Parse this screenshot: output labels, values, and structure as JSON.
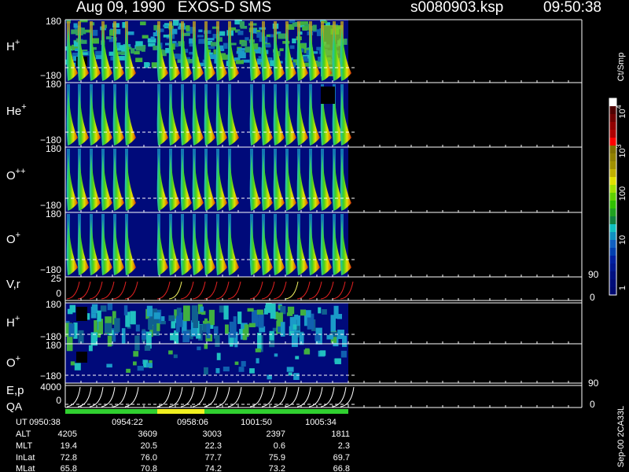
{
  "header": {
    "title": "Aug 09, 1990   EXOS-D SMS",
    "file": "s0080903.ksp",
    "time": "09:50:38"
  },
  "panels": [
    {
      "label": "H",
      "sup": "+",
      "ticks": [
        "180",
        "−180"
      ]
    },
    {
      "label": "He",
      "sup": "+",
      "ticks": [
        "180",
        "−180"
      ]
    },
    {
      "label": "O",
      "sup": "++",
      "ticks": [
        "180",
        "−180"
      ]
    },
    {
      "label": "O",
      "sup": "+",
      "ticks": [
        "180",
        "−180"
      ]
    },
    {
      "label": "V,r",
      "ticks": [
        "25",
        "0"
      ],
      "right_ticks": [
        "90",
        "0"
      ]
    },
    {
      "label": "H",
      "sup": "+",
      "ticks": [
        "180",
        "−180"
      ]
    },
    {
      "label": "O",
      "sup": "+",
      "ticks": [
        "180",
        "−180"
      ]
    },
    {
      "label": "E,p",
      "ticks": [
        "4000",
        "0"
      ],
      "right_ticks": [
        "90",
        "0"
      ]
    }
  ],
  "qa_label": "QA",
  "colorbar": {
    "unit": "Ct/Smp",
    "labels": [
      {
        "text": "10",
        "sup": "4"
      },
      {
        "text": "10",
        "sup": "3"
      },
      {
        "text": "100"
      },
      {
        "text": "10"
      },
      {
        "text": "1"
      }
    ]
  },
  "table": {
    "rows": [
      [
        "UT",
        "0950:38",
        "0954:22",
        "0958:06",
        "1001:50",
        "1005:34"
      ],
      [
        "ALT",
        "4205",
        "3609",
        "3003",
        "2397",
        "1811"
      ],
      [
        "MLT",
        "19.4",
        "20.5",
        "22.3",
        "0.6",
        "2.3"
      ],
      [
        "InLat",
        "72.8",
        "76.0",
        "77.7",
        "75.9",
        "69.7"
      ],
      [
        "MLat",
        "65.8",
        "70.8",
        "74.2",
        "73.2",
        "66.8"
      ]
    ]
  },
  "footer_code": "Sep-00 2CA33L"
}
